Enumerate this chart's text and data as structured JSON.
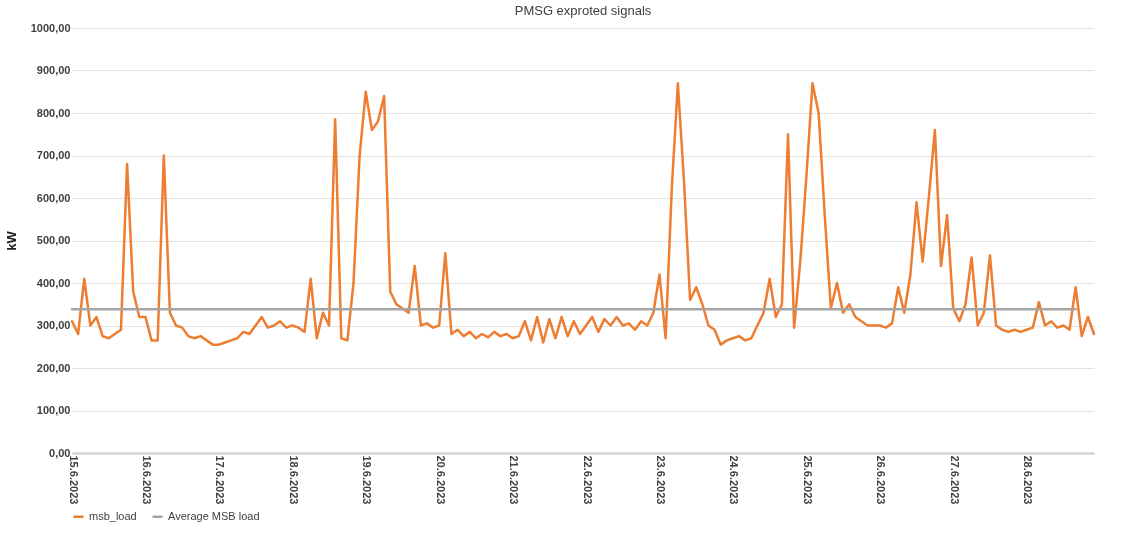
{
  "chart_data": {
    "type": "line",
    "title": "PMSG exproted signals",
    "ylabel": "kW",
    "categories": [
      "15.6.2023",
      null,
      null,
      null,
      null,
      null,
      null,
      null,
      null,
      null,
      null,
      null,
      "16.6.2023",
      null,
      null,
      null,
      null,
      null,
      null,
      null,
      null,
      null,
      null,
      null,
      "17.6.2023",
      null,
      null,
      null,
      null,
      null,
      null,
      null,
      null,
      null,
      null,
      null,
      "18.6.2023",
      null,
      null,
      null,
      null,
      null,
      null,
      null,
      null,
      null,
      null,
      null,
      "19.6.2023",
      null,
      null,
      null,
      null,
      null,
      null,
      null,
      null,
      null,
      null,
      null,
      "20.6.2023",
      null,
      null,
      null,
      null,
      null,
      null,
      null,
      null,
      null,
      null,
      null,
      "21.6.2023",
      null,
      null,
      null,
      null,
      null,
      null,
      null,
      null,
      null,
      null,
      null,
      "22.6.2023",
      null,
      null,
      null,
      null,
      null,
      null,
      null,
      null,
      null,
      null,
      null,
      "23.6.2023",
      null,
      null,
      null,
      null,
      null,
      null,
      null,
      null,
      null,
      null,
      null,
      "24.6.2023",
      null,
      null,
      null,
      null,
      null,
      null,
      null,
      null,
      null,
      null,
      null,
      "25.6.2023",
      null,
      null,
      null,
      null,
      null,
      null,
      null,
      null,
      null,
      null,
      null,
      "26.6.2023",
      null,
      null,
      null,
      null,
      null,
      null,
      null,
      null,
      null,
      null,
      null,
      "27.6.2023",
      null,
      null,
      null,
      null,
      null,
      null,
      null,
      null,
      null,
      null,
      null,
      "28.6.2023",
      null,
      null,
      null,
      null,
      null,
      null,
      null,
      null,
      null,
      null,
      null
    ],
    "series": [
      {
        "name": "msb_load",
        "color": "#ed7d31",
        "values": [
          310,
          280,
          410,
          300,
          320,
          275,
          270,
          280,
          290,
          680,
          380,
          320,
          320,
          265,
          265,
          700,
          330,
          300,
          295,
          275,
          270,
          275,
          265,
          255,
          255,
          260,
          265,
          270,
          285,
          280,
          300,
          320,
          295,
          300,
          310,
          295,
          300,
          295,
          285,
          410,
          270,
          330,
          300,
          785,
          270,
          265,
          400,
          700,
          850,
          760,
          780,
          840,
          380,
          350,
          340,
          330,
          440,
          300,
          305,
          295,
          300,
          470,
          280,
          290,
          275,
          285,
          270,
          280,
          272,
          285,
          275,
          280,
          270,
          275,
          310,
          265,
          320,
          260,
          315,
          270,
          320,
          275,
          310,
          280,
          300,
          320,
          285,
          315,
          300,
          320,
          300,
          305,
          290,
          310,
          300,
          330,
          420,
          270,
          620,
          870,
          640,
          360,
          390,
          350,
          300,
          290,
          255,
          265,
          270,
          275,
          265,
          270,
          300,
          330,
          410,
          320,
          350,
          750,
          295,
          450,
          650,
          870,
          800,
          560,
          340,
          400,
          330,
          350,
          320,
          310,
          300,
          300,
          300,
          295,
          305,
          390,
          330,
          420,
          590,
          450,
          600,
          760,
          440,
          560,
          340,
          310,
          350,
          460,
          300,
          330,
          465,
          300,
          290,
          285,
          290,
          285,
          290,
          295,
          355,
          300,
          310,
          295,
          300,
          290,
          390,
          275,
          320,
          280
        ]
      },
      {
        "name": "Average MSB load",
        "color": "#a5a5a5",
        "values": [
          338,
          338,
          338,
          338,
          338,
          338,
          338,
          338,
          338,
          338,
          338,
          338,
          338,
          338,
          338,
          338,
          338,
          338,
          338,
          338,
          338,
          338,
          338,
          338,
          338,
          338,
          338,
          338,
          338,
          338,
          338,
          338,
          338,
          338,
          338,
          338,
          338,
          338,
          338,
          338,
          338,
          338,
          338,
          338,
          338,
          338,
          338,
          338,
          338,
          338,
          338,
          338,
          338,
          338,
          338,
          338,
          338,
          338,
          338,
          338,
          338,
          338,
          338,
          338,
          338,
          338,
          338,
          338,
          338,
          338,
          338,
          338,
          338,
          338,
          338,
          338,
          338,
          338,
          338,
          338,
          338,
          338,
          338,
          338,
          338,
          338,
          338,
          338,
          338,
          338,
          338,
          338,
          338,
          338,
          338,
          338,
          338,
          338,
          338,
          338,
          338,
          338,
          338,
          338,
          338,
          338,
          338,
          338,
          338,
          338,
          338,
          338,
          338,
          338,
          338,
          338,
          338,
          338,
          338,
          338,
          338,
          338,
          338,
          338,
          338,
          338,
          338,
          338,
          338,
          338,
          338,
          338,
          338,
          338,
          338,
          338,
          338,
          338,
          338,
          338,
          338,
          338,
          338,
          338,
          338,
          338,
          338,
          338,
          338,
          338,
          338,
          338,
          338,
          338,
          338,
          338,
          338,
          338,
          338,
          338,
          338,
          338,
          338,
          338,
          338,
          null,
          null,
          null
        ]
      }
    ],
    "ylim": [
      0,
      1000
    ],
    "yticks": [
      {
        "value": 0,
        "label": "0,00"
      },
      {
        "value": 100,
        "label": "100,00"
      },
      {
        "value": 200,
        "label": "200,00"
      },
      {
        "value": 300,
        "label": "300,00"
      },
      {
        "value": 400,
        "label": "400,00"
      },
      {
        "value": 500,
        "label": "500,00"
      },
      {
        "value": 600,
        "label": "600,00"
      },
      {
        "value": 700,
        "label": "700,00"
      },
      {
        "value": 800,
        "label": "800,00"
      },
      {
        "value": 900,
        "label": "900,00"
      },
      {
        "value": 1000,
        "label": "1000,00"
      }
    ],
    "grid": "y",
    "legend": "bottom"
  }
}
